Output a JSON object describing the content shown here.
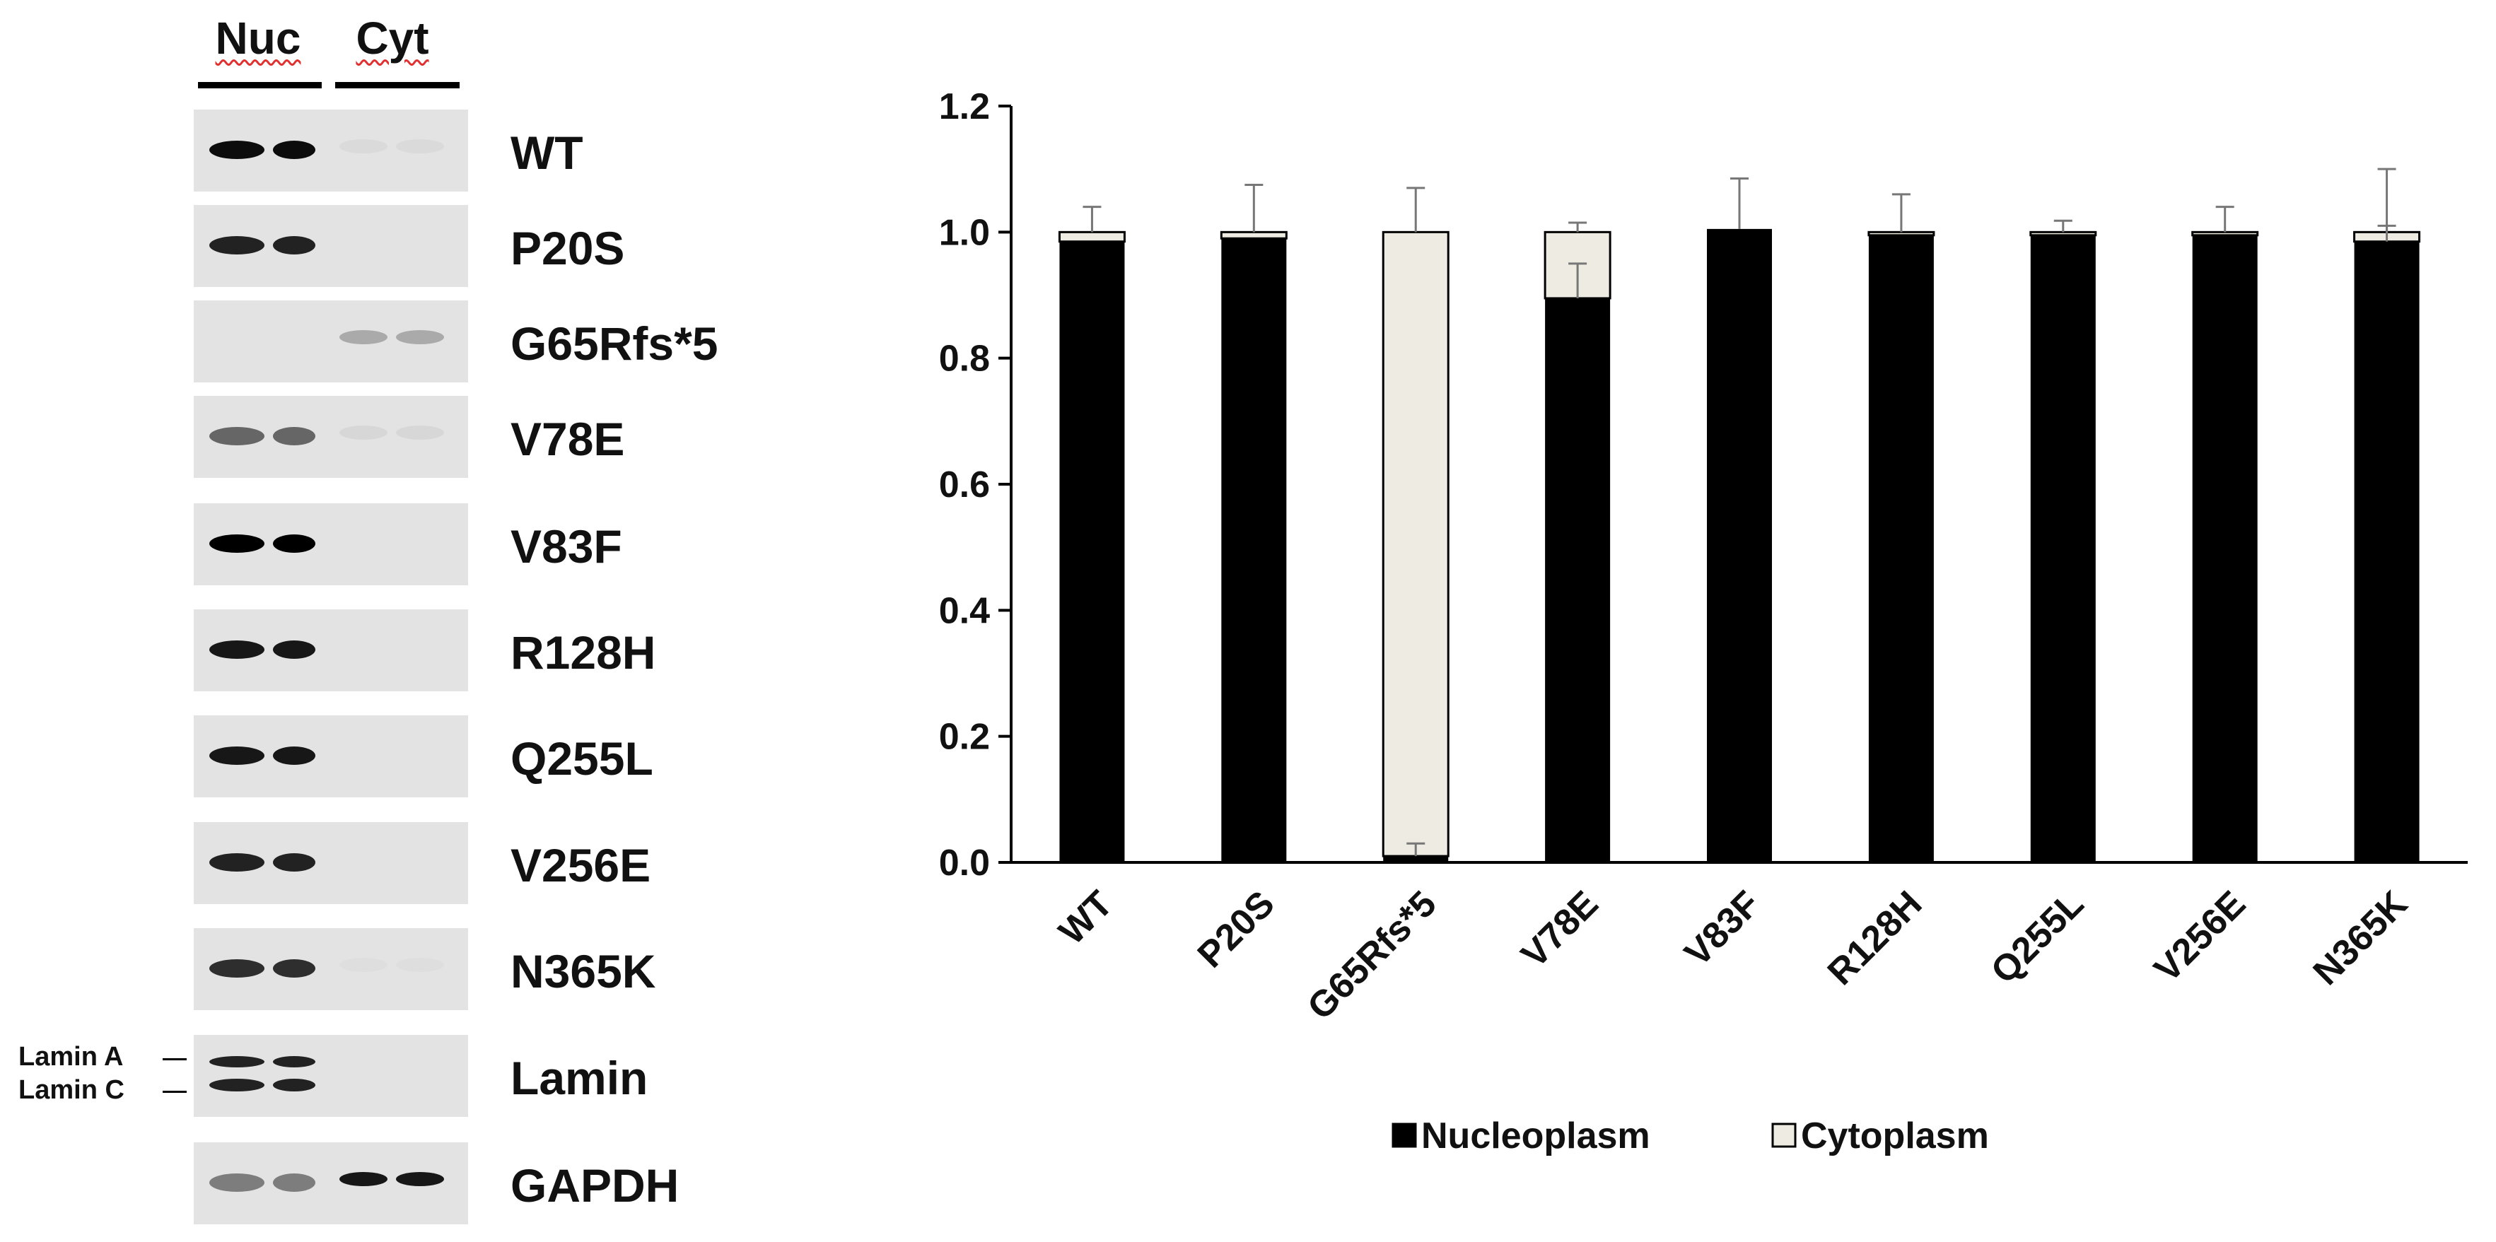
{
  "blot": {
    "lane_headers": [
      "Nuc",
      "Cyt"
    ],
    "strips": [
      {
        "label": "WT",
        "nuc_intensity": 0.95,
        "cyt_intensity": 0.04
      },
      {
        "label": "P20S",
        "nuc_intensity": 0.85,
        "cyt_intensity": 0.0
      },
      {
        "label": "G65Rfs*5",
        "nuc_intensity": 0.0,
        "cyt_intensity": 0.25
      },
      {
        "label": "V78E",
        "nuc_intensity": 0.55,
        "cyt_intensity": 0.05
      },
      {
        "label": "V83F",
        "nuc_intensity": 1.0,
        "cyt_intensity": 0.0
      },
      {
        "label": "R128H",
        "nuc_intensity": 0.9,
        "cyt_intensity": 0.0
      },
      {
        "label": "Q255L",
        "nuc_intensity": 0.9,
        "cyt_intensity": 0.0
      },
      {
        "label": "V256E",
        "nuc_intensity": 0.85,
        "cyt_intensity": 0.0
      },
      {
        "label": "N365K",
        "nuc_intensity": 0.8,
        "cyt_intensity": 0.02
      },
      {
        "label": "Lamin",
        "nuc_intensity": 0.85,
        "cyt_intensity": 0.0
      },
      {
        "label": "GAPDH",
        "nuc_intensity": 0.45,
        "cyt_intensity": 0.9
      }
    ],
    "lamin_side_labels": [
      "Lamin A",
      "Lamin C"
    ]
  },
  "chart_data": {
    "type": "bar",
    "stacked": true,
    "categories": [
      "WT",
      "P20S",
      "G65Rfs*5",
      "V78E",
      "V83F",
      "R128H",
      "Q255L",
      "V256E",
      "N365K"
    ],
    "series": [
      {
        "name": "Nucleoplasm",
        "color": "#000000",
        "values": [
          0.985,
          0.99,
          0.01,
          0.895,
          1.005,
          0.995,
          0.995,
          0.995,
          0.985
        ],
        "error": [
          0,
          0,
          0.02,
          0.055,
          0,
          0,
          0,
          0,
          0.025
        ]
      },
      {
        "name": "Cytoplasm",
        "color": "#eeece2",
        "values": [
          0.015,
          0.01,
          0.99,
          0.105,
          0.0,
          0.005,
          0.005,
          0.005,
          0.015
        ],
        "error": [
          0.04,
          0.075,
          0.07,
          0.015,
          0.08,
          0.06,
          0.018,
          0.04,
          0.1
        ]
      }
    ],
    "ylim": [
      0,
      1.2
    ],
    "yticks": [
      0.0,
      0.2,
      0.4,
      0.6,
      0.8,
      1.0,
      1.2
    ],
    "ytick_labels": [
      "0.0",
      "0.2",
      "0.4",
      "0.6",
      "0.8",
      "1.0",
      "1.2"
    ],
    "legend_position": "bottom",
    "grid": false
  }
}
